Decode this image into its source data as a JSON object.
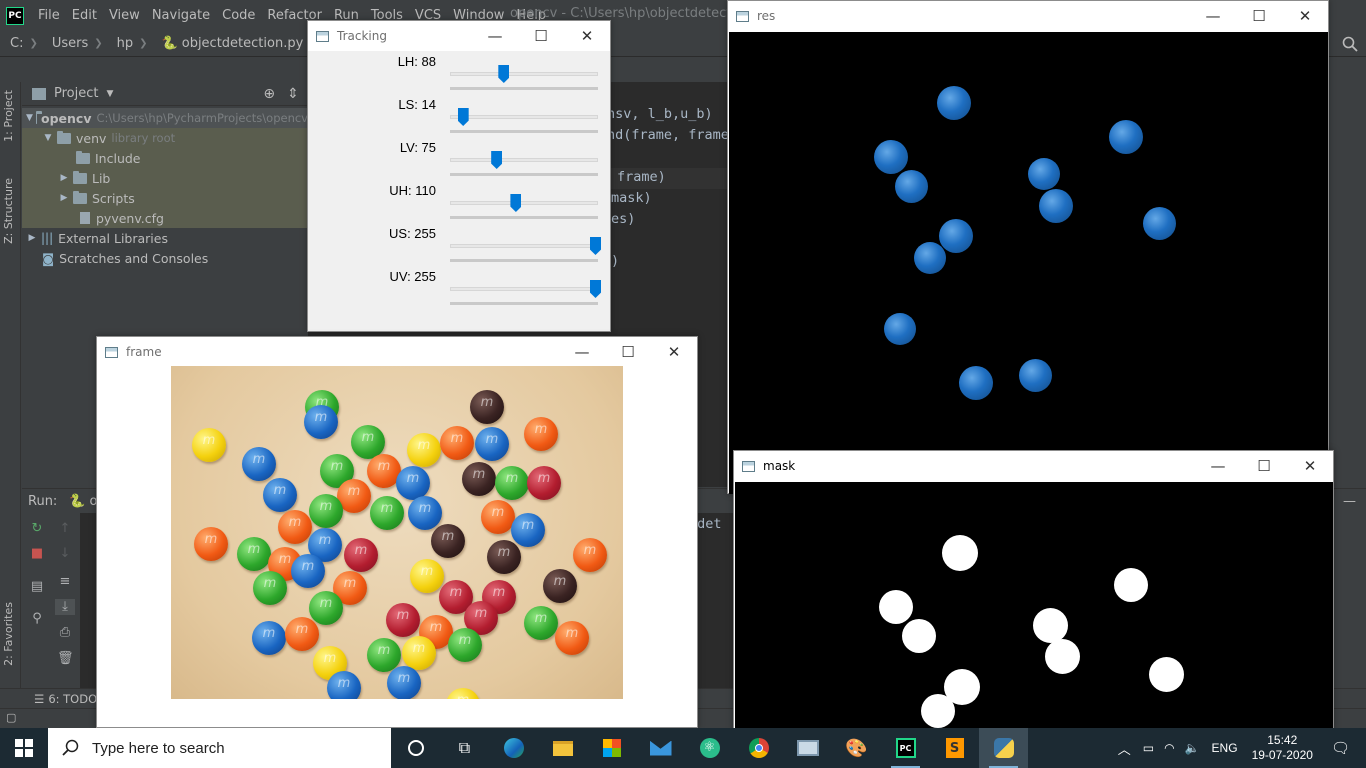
{
  "ide": {
    "menu": [
      "File",
      "Edit",
      "View",
      "Navigate",
      "Code",
      "Refactor",
      "Run",
      "Tools",
      "VCS",
      "Window",
      "Help"
    ],
    "window_title": "opencv - C:\\Users\\hp\\objectdetection.py",
    "breadcrumb": [
      "C:",
      "Users",
      "hp",
      "objectdetection.py"
    ],
    "left_tabs": [
      "1: Project",
      "Z: Structure",
      "2: Favorites"
    ],
    "project_header": "Project",
    "tree": [
      {
        "label": "opencv",
        "hint": "C:\\Users\\hp\\PycharmProjects\\opencv"
      },
      {
        "label": "venv",
        "hint": "library root"
      },
      {
        "label": "Include"
      },
      {
        "label": "Lib"
      },
      {
        "label": "Scripts"
      },
      {
        "label": "pyvenv.cfg"
      },
      {
        "label": "External Libraries"
      },
      {
        "label": "Scratches and Consoles"
      }
    ],
    "code_lines": [
      "nsv, l_b,u_b)",
      "nd(frame, frame",
      "frame)",
      "mask)",
      "es)",
      ")"
    ],
    "run_label": "Run:",
    "run_tab": "o",
    "console_text": "tdet",
    "todo_tab": "6: TODO"
  },
  "tracking": {
    "title": "Tracking",
    "sliders": [
      {
        "label": "LH: 88",
        "value": 88,
        "max": 255
      },
      {
        "label": "LS: 14",
        "value": 14,
        "max": 255
      },
      {
        "label": "LV: 75",
        "value": 75,
        "max": 255
      },
      {
        "label": "UH: 110",
        "value": 110,
        "max": 255
      },
      {
        "label": "US: 255",
        "value": 255,
        "max": 255
      },
      {
        "label": "UV: 255",
        "value": 255,
        "max": 255
      }
    ]
  },
  "windows": {
    "frame_title": "frame",
    "res_title": "res",
    "mask_title": "mask"
  },
  "taskbar": {
    "search_placeholder": "Type here to search",
    "language": "ENG",
    "time": "15:42",
    "date": "19-07-2020"
  },
  "colors": {
    "ide_bg": "#3c3f41",
    "editor_bg": "#2b2b2b",
    "slider_thumb": "#0078d7",
    "taskbar_bg": "#1c2a33"
  }
}
